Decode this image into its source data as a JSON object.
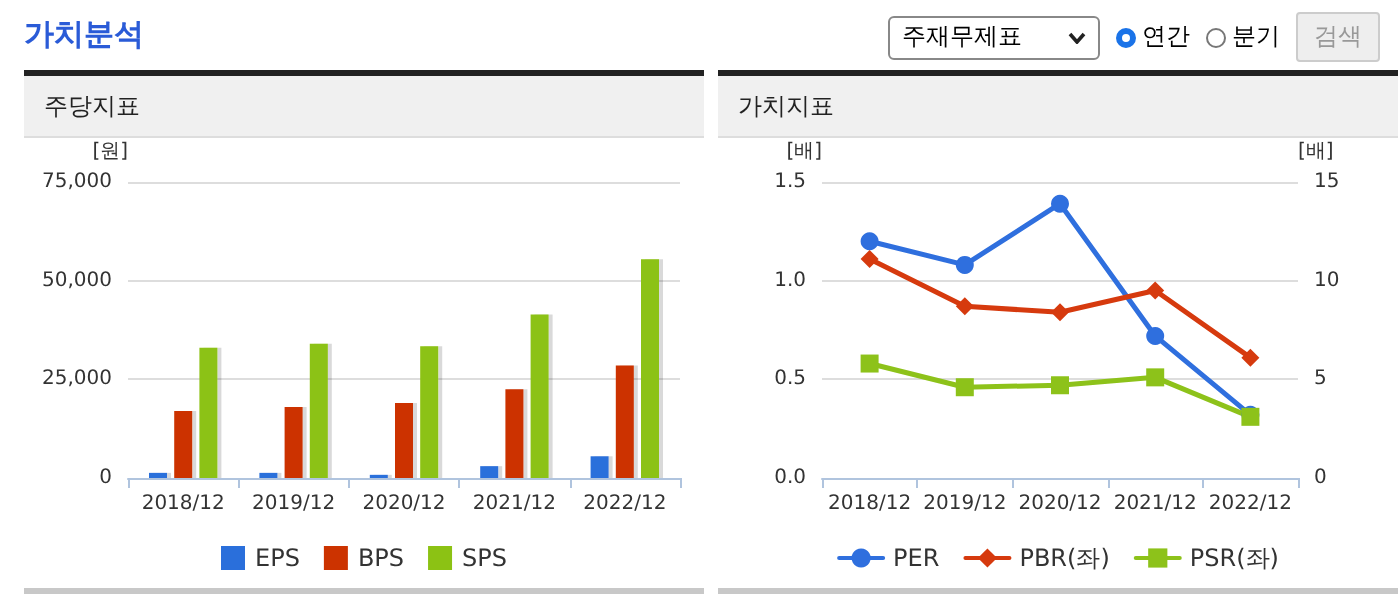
{
  "chart_data": [
    {
      "type": "bar",
      "title": "주당지표",
      "ylabel": "[원]",
      "annotations": [
        "가치분석"
      ],
      "categories": [
        "2018/12",
        "2019/12",
        "2020/12",
        "2021/12",
        "2022/12"
      ],
      "series": [
        {
          "name": "EPS",
          "color": "#2a6fdb",
          "values": [
            1300,
            1300,
            800,
            3000,
            5500
          ]
        },
        {
          "name": "BPS",
          "color": "#cc3300",
          "values": [
            17000,
            18000,
            19000,
            22500,
            28500
          ]
        },
        {
          "name": "SPS",
          "color": "#8cc214",
          "values": [
            33000,
            34000,
            33400,
            41400,
            55400
          ]
        }
      ],
      "ylim": [
        0,
        75000
      ],
      "yticks": [
        0,
        {
          "value": 25000,
          "label": "25,000"
        },
        {
          "value": 50000,
          "label": "50,000"
        },
        {
          "value": 75000,
          "label": "75,000"
        }
      ],
      "grid": "y",
      "legend": "bottom"
    },
    {
      "type": "line",
      "title": "가치지표",
      "ylabel": "[배]",
      "y2label": "[배]",
      "annotations": [
        "주재무제표",
        "연간",
        "분기",
        "검색"
      ],
      "categories": [
        "2018/12",
        "2019/12",
        "2020/12",
        "2021/12",
        "2022/12"
      ],
      "series": [
        {
          "name": "PER",
          "color": "#2f6fde",
          "axis": "y2",
          "marker": "circle",
          "values": [
            12.0,
            10.8,
            13.9,
            7.2,
            3.2
          ]
        },
        {
          "name": "PBR(좌)",
          "color": "#d63a0e",
          "marker": "diamond",
          "values": [
            1.11,
            0.87,
            0.84,
            0.95,
            0.61
          ]
        },
        {
          "name": "PSR(좌)",
          "color": "#8dc21a",
          "marker": "square",
          "values": [
            0.58,
            0.46,
            0.47,
            0.51,
            0.31
          ]
        }
      ],
      "ylim": [
        0,
        1.5
      ],
      "yticks": [
        {
          "value": 0,
          "label": "0.0"
        },
        {
          "value": 0.5,
          "label": "0.5"
        },
        {
          "value": 1,
          "label": "1.0"
        },
        {
          "value": 1.5,
          "label": "1.5"
        }
      ],
      "y2lim": [
        0,
        15
      ],
      "y2ticks": [
        0,
        5,
        10,
        15
      ],
      "grid": "y",
      "legend": "bottom",
      "line_style": "solid"
    }
  ]
}
